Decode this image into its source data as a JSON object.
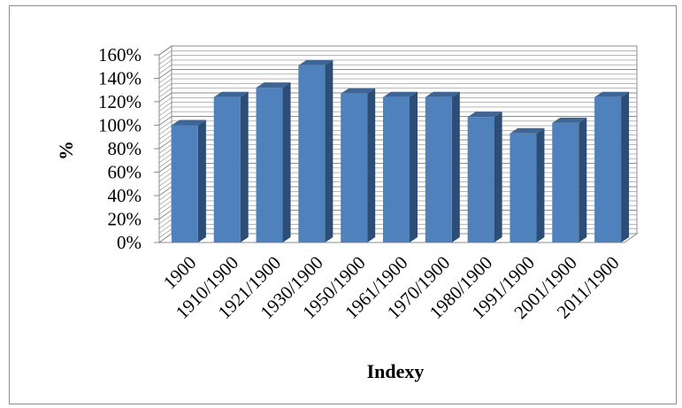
{
  "chart_data": {
    "type": "bar",
    "categories": [
      "1900",
      "1910/1900",
      "1921/1900",
      "1930/1900",
      "1950/1900",
      "1961/1900",
      "1970/1900",
      "1980/1900",
      "1991/1900",
      "2001/1900",
      "2011/1900"
    ],
    "values": [
      100,
      124,
      132,
      151,
      127,
      124,
      124,
      107,
      93,
      102,
      124
    ],
    "title": "",
    "xlabel": "Indexy",
    "ylabel": "%",
    "ylim": [
      0,
      160
    ],
    "y_ticks": [
      "0%",
      "20%",
      "40%",
      "60%",
      "80%",
      "100%",
      "120%",
      "140%",
      "160%"
    ],
    "grid": true,
    "legend": "none",
    "style": "3d-clustered-column",
    "colors": {
      "bar_front": "#4f81bd",
      "bar_side": "#2c4d75",
      "bar_top": "#3e6595",
      "grid": "#8c8c8c"
    }
  }
}
